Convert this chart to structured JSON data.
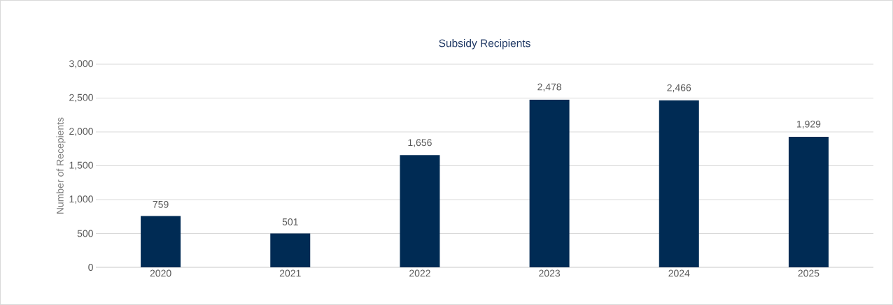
{
  "chart_data": {
    "type": "bar",
    "title": "Subsidy Recipients",
    "ylabel": "Number of Recepients",
    "categories": [
      "2020",
      "2021",
      "2022",
      "2023",
      "2024",
      "2025"
    ],
    "values": [
      759,
      501,
      1656,
      2478,
      2466,
      1929
    ],
    "value_labels": [
      "759",
      "501",
      "1,656",
      "2,478",
      "2,466",
      "1,929"
    ],
    "color": "#002b54",
    "ylim": [
      0,
      3000
    ],
    "yticks": [
      {
        "value": 0,
        "label": "0"
      },
      {
        "value": 500,
        "label": "500"
      },
      {
        "value": 1000,
        "label": "1,000"
      },
      {
        "value": 1500,
        "label": "1,500"
      },
      {
        "value": 2000,
        "label": "2,000"
      },
      {
        "value": 2500,
        "label": "2,500"
      },
      {
        "value": 3000,
        "label": "3,000"
      }
    ],
    "grid": "y"
  }
}
